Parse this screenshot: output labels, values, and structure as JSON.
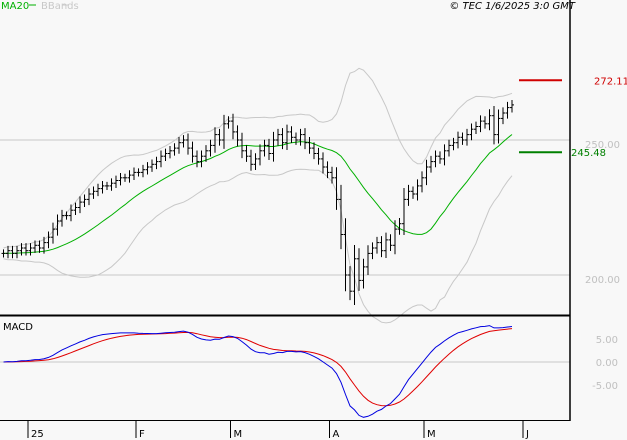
{
  "header": {
    "legend_ma20": "MA20",
    "legend_bbands": "BBands",
    "copyright": "© TEC 1/6/2025 3:0 GMT"
  },
  "colors": {
    "ma20": "#00b000",
    "bbands": "#c8c8c8",
    "macd": "#0000e0",
    "signal": "#e00000",
    "resistance": "#d00000",
    "support": "#008000"
  },
  "chart_data": [
    {
      "type": "ohlc",
      "title": "",
      "ylim": [
        185,
        302
      ],
      "y_ticks": [
        {
          "value": 250,
          "label": "250.00"
        },
        {
          "value": 200,
          "label": "200.00"
        }
      ],
      "x_ticks": [
        {
          "index": 5,
          "label": "25"
        },
        {
          "index": 29,
          "label": "F"
        },
        {
          "index": 50,
          "label": "M"
        },
        {
          "index": 72,
          "label": "A"
        },
        {
          "index": 93,
          "label": "M"
        },
        {
          "index": 115,
          "label": "J"
        }
      ],
      "close": [
        208,
        209,
        208,
        209,
        210,
        209,
        210,
        211,
        210,
        212,
        214,
        217,
        220,
        222,
        222,
        224,
        225,
        227,
        228,
        230,
        231,
        232,
        233,
        233,
        234,
        235,
        236,
        236,
        237,
        238,
        238,
        239,
        240,
        241,
        242,
        244,
        245,
        246,
        247,
        249,
        250,
        247,
        244,
        242,
        244,
        246,
        248,
        252,
        250,
        256,
        257,
        253,
        250,
        246,
        244,
        241,
        243,
        246,
        248,
        245,
        250,
        252,
        249,
        253,
        251,
        250,
        252,
        249,
        247,
        245,
        243,
        240,
        238,
        236,
        228,
        215,
        200,
        194,
        206,
        198,
        203,
        208,
        210,
        212,
        209,
        213,
        211,
        217,
        219,
        228,
        231,
        230,
        233,
        236,
        240,
        242,
        244,
        243,
        246,
        248,
        249,
        251,
        250,
        252,
        254,
        255,
        257,
        256,
        259,
        252,
        258,
        260,
        262,
        263
      ],
      "overlays": [
        {
          "name": "MA20",
          "type": "sma",
          "period": 20
        },
        {
          "name": "BBands",
          "type": "bollinger",
          "period": 20,
          "stddev": 2
        }
      ],
      "levels": [
        {
          "name": "resistance",
          "value": 272.11,
          "label": "272.11"
        },
        {
          "name": "support",
          "value": 245.48,
          "label": "245.48"
        }
      ]
    },
    {
      "type": "line",
      "title": "MACD",
      "ylim": [
        -12,
        10
      ],
      "y_ticks": [
        {
          "value": 5,
          "label": "5.00"
        },
        {
          "value": 0,
          "label": "0.00"
        },
        {
          "value": -5,
          "label": "-5.00"
        }
      ],
      "series": [
        {
          "name": "MACD",
          "fast": 12,
          "slow": 26
        },
        {
          "name": "Signal",
          "period": 9
        }
      ]
    }
  ]
}
